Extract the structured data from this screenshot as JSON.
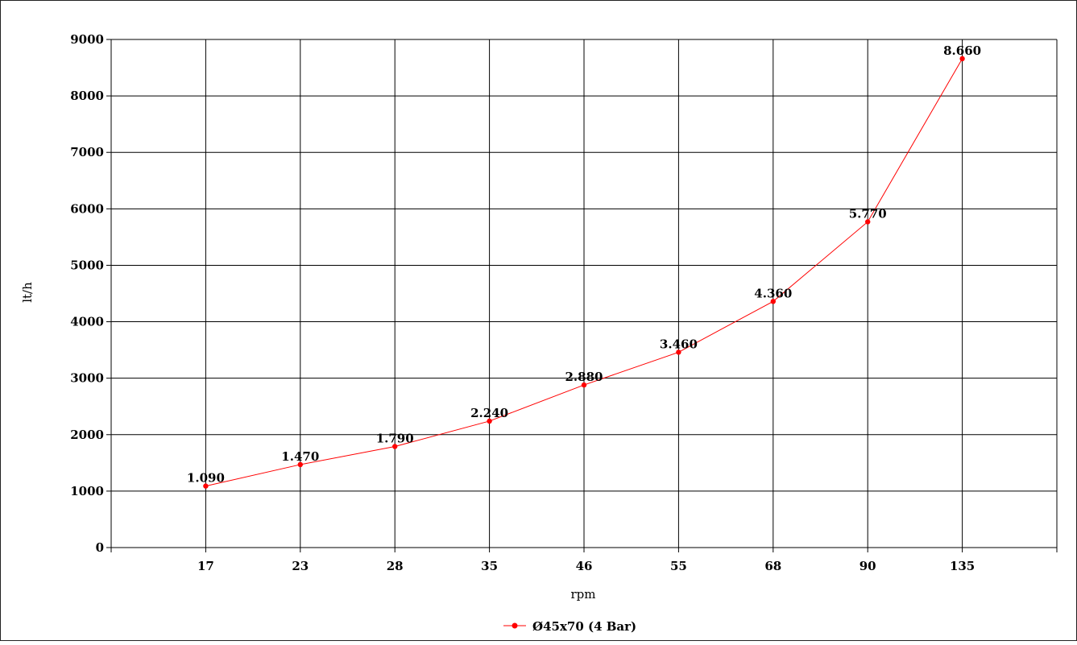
{
  "chart_data": {
    "type": "line",
    "title": "",
    "xlabel": "rpm",
    "ylabel": "lt/h",
    "categories": [
      "17",
      "23",
      "28",
      "35",
      "46",
      "55",
      "68",
      "90",
      "135"
    ],
    "yticks": [
      "0",
      "1000",
      "2000",
      "3000",
      "4000",
      "5000",
      "6000",
      "7000",
      "8000",
      "9000"
    ],
    "ylim": [
      0,
      9000
    ],
    "grid": true,
    "legend_position": "bottom",
    "series": [
      {
        "name": "Ø45x70 (4 Bar)",
        "color": "#ff0000",
        "values": [
          1090,
          1470,
          1790,
          2240,
          2880,
          3460,
          4360,
          5770,
          8660
        ],
        "labels": [
          "1.090",
          "1.470",
          "1.790",
          "2.240",
          "2.880",
          "3.460",
          "4.360",
          "5.770",
          "8.660"
        ]
      }
    ]
  }
}
